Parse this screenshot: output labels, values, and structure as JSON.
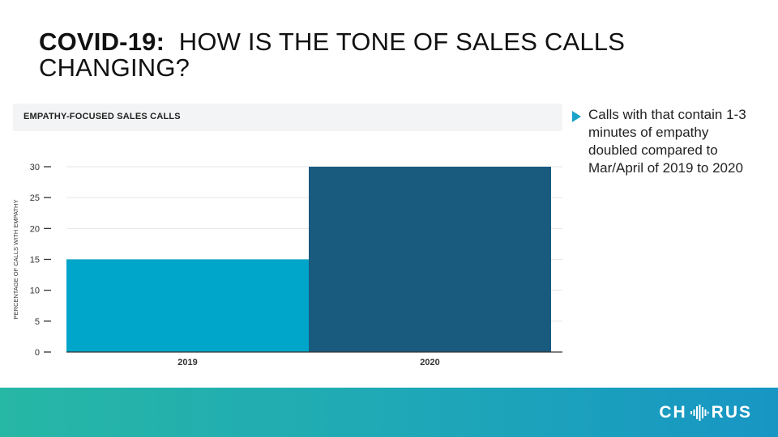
{
  "title": {
    "bold": "COVID-19:",
    "rest": "HOW IS THE TONE OF SALES CALLS CHANGING?"
  },
  "chart_header": "EMPATHY-FOCUSED SALES CALLS",
  "bullet": {
    "text": "Calls with that contain 1-3 minutes of empathy doubled compared to Mar/April of 2019 to 2020"
  },
  "logo": {
    "left": "CH",
    "right": "RUS",
    "icon": "sound-wave-icon"
  },
  "colors": {
    "bar_2019": "#00a6c9",
    "bar_2020": "#195a7f",
    "footer_start": "#27b7a5",
    "footer_end": "#1796c4"
  },
  "chart_data": {
    "type": "bar",
    "title": "EMPATHY-FOCUSED SALES CALLS",
    "categories": [
      "2019",
      "2020"
    ],
    "values": [
      15,
      30
    ],
    "xlabel": "",
    "ylabel": "PERCENTAGE OF CALLS WITH EMPATHY",
    "ylim": [
      0,
      30
    ],
    "yticks": [
      0,
      5,
      10,
      15,
      20,
      25,
      30
    ],
    "grid": true,
    "legend": "none"
  }
}
